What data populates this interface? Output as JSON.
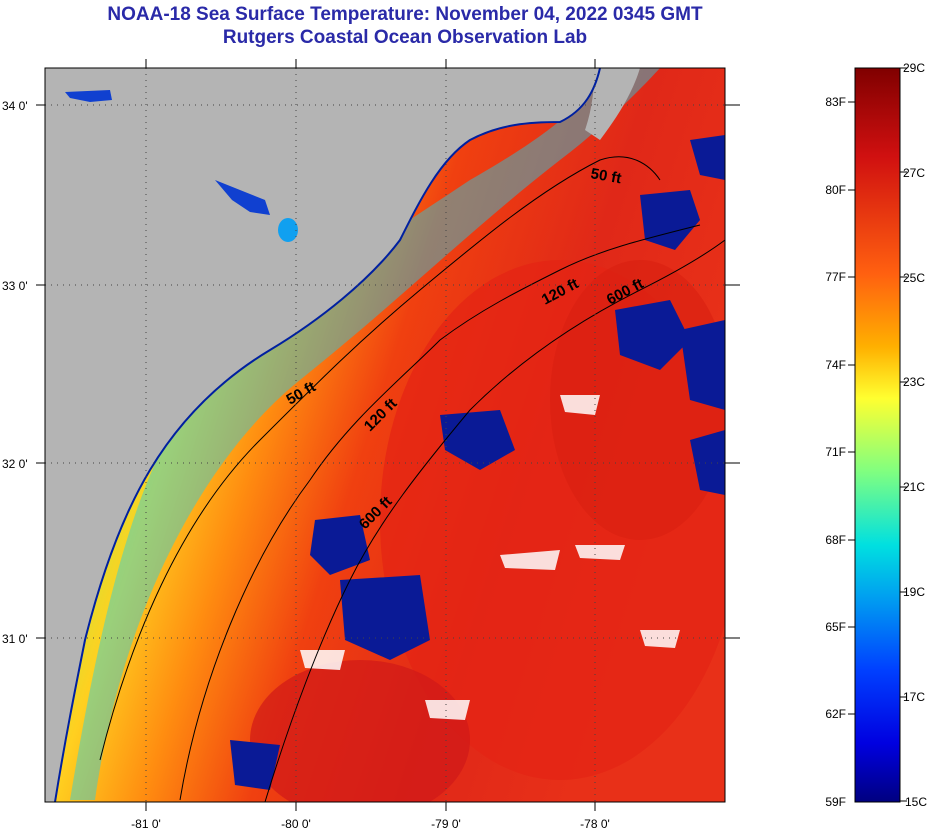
{
  "title": {
    "line1": "NOAA-18 Sea Surface Temperature:  November 04, 2022 0345 GMT",
    "line2": "Rutgers Coastal Ocean Observation Lab"
  },
  "map": {
    "lon_ticks": [
      "-81 0'",
      "-80 0'",
      "-79 0'",
      "-78 0'"
    ],
    "lat_ticks": [
      "34 0'",
      "33 0'",
      "32 0'",
      "31 0'"
    ],
    "contour_labels": [
      "50 ft",
      "120 ft",
      "600 ft",
      "50 ft",
      "120 ft",
      "600 ft"
    ]
  },
  "colorbar": {
    "fahrenheit_labels": [
      "83F",
      "80F",
      "77F",
      "74F",
      "71F",
      "68F",
      "65F",
      "62F",
      "59F"
    ],
    "celsius_labels": [
      "29C",
      "27C",
      "25C",
      "23C",
      "21C",
      "19C",
      "17C",
      "15C"
    ]
  },
  "colors": {
    "land": "#b4b4b4",
    "cloud_mask": "#0a1a96",
    "title": "#2a2aa8"
  }
}
